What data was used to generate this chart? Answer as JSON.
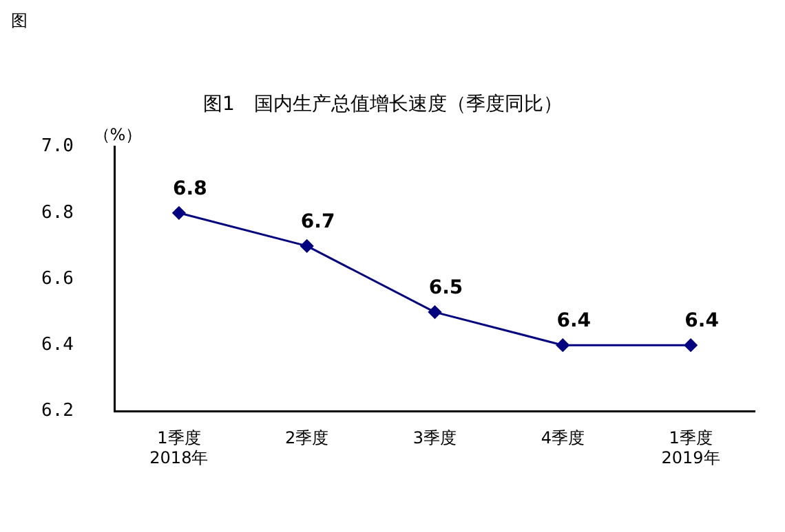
{
  "chart_data": {
    "type": "line",
    "title": "图1　国内生产总值增长速度（季度同比）",
    "ylabel": "（%）",
    "annotations": [
      "图"
    ],
    "categories": [
      "1季度\n2018年",
      "2季度",
      "3季度",
      "4季度",
      "1季度\n2019年"
    ],
    "series": [
      {
        "color": "#000080",
        "values": [
          6.8,
          6.7,
          6.5,
          6.4,
          6.4
        ]
      }
    ],
    "ylim": [
      6.2,
      7.0
    ],
    "yticks": [
      {
        "value": 6.2,
        "label": "6.2"
      },
      {
        "value": 6.4,
        "label": "6.4"
      },
      {
        "value": 6.6,
        "label": "6.6"
      },
      {
        "value": 6.8,
        "label": "6.8"
      },
      {
        "value": 7.0,
        "label": "7.0"
      }
    ],
    "grid": false,
    "legend": false,
    "marker": "diamond",
    "line_style": "solid",
    "data_labels": true
  }
}
